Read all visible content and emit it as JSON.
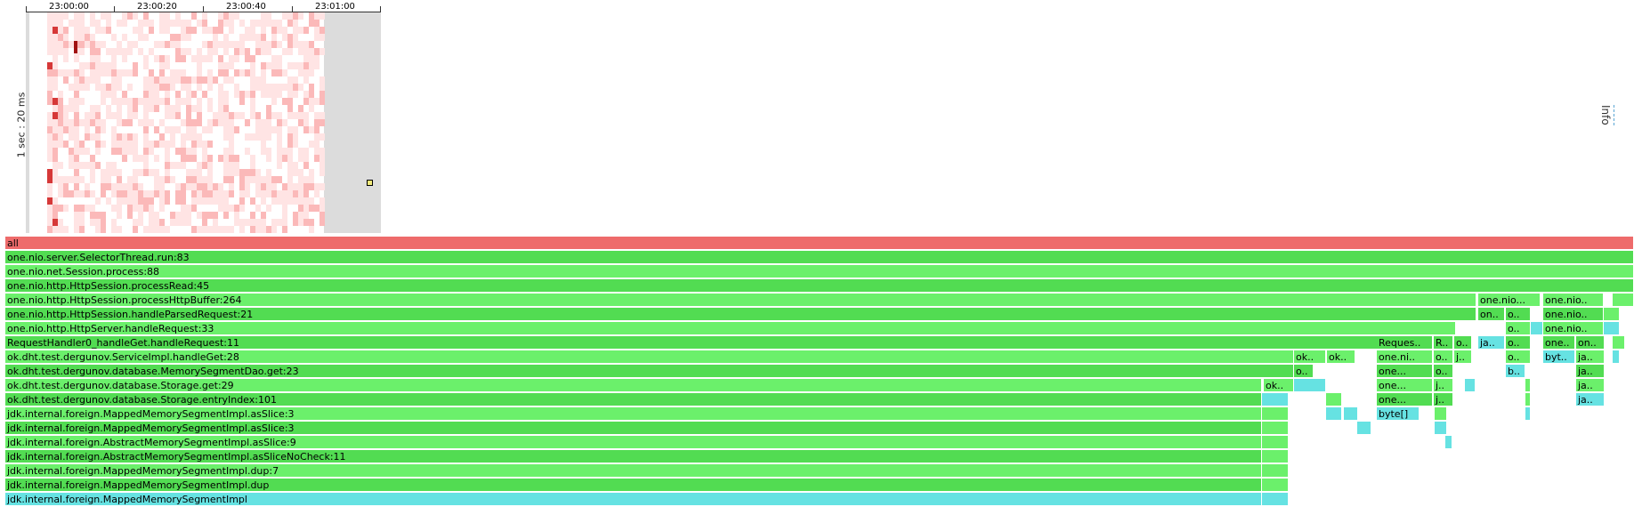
{
  "heatmap": {
    "time_axis_labels": [
      "23:00:00",
      "23:00:20",
      "23:00:40",
      "23:01:00"
    ],
    "y_axis_label": "1 sec : 20 ms",
    "colors": {
      "low": "#ffe4e4",
      "mid": "#fbb9b9",
      "high": "#d63838",
      "hot": "#a11212",
      "empty": "#dcdcdc"
    }
  },
  "info_tab": {
    "label": "Info"
  },
  "flame": {
    "colors": {
      "java": "#6bf06b",
      "java_dark": "#52dc52",
      "inlined": "#66e2e2",
      "root": "#ee6b6b"
    },
    "frames": [
      {
        "label": "all",
        "kind": "root"
      },
      {
        "label": "one.nio.server.SelectorThread.run:83",
        "kind": "java"
      },
      {
        "label": "one.nio.net.Session.process:88",
        "kind": "java"
      },
      {
        "label": "one.nio.http.HttpSession.processRead:45",
        "kind": "java"
      },
      {
        "label": "one.nio.http.HttpSession.processHttpBuffer:264",
        "kind": "java"
      },
      {
        "label": "one.nio.http.HttpSession.handleParsedRequest:21",
        "kind": "java"
      },
      {
        "label": "one.nio.http.HttpServer.handleRequest:33",
        "kind": "java"
      },
      {
        "label": "RequestHandler0_handleGet.handleRequest:11",
        "kind": "java"
      },
      {
        "label": "ok.dht.test.dergunov.ServiceImpl.handleGet:28",
        "kind": "java"
      },
      {
        "label": "ok.dht.test.dergunov.database.MemorySegmentDao.get:23",
        "kind": "java"
      },
      {
        "label": "ok.dht.test.dergunov.database.Storage.get:29",
        "kind": "java"
      },
      {
        "label": "ok.dht.test.dergunov.database.Storage.entryIndex:101",
        "kind": "java"
      },
      {
        "label": "jdk.internal.foreign.MappedMemorySegmentImpl.asSlice:3",
        "kind": "java"
      },
      {
        "label": "jdk.internal.foreign.MappedMemorySegmentImpl.asSlice:3",
        "kind": "java"
      },
      {
        "label": "jdk.internal.foreign.AbstractMemorySegmentImpl.asSlice:9",
        "kind": "java"
      },
      {
        "label": "jdk.internal.foreign.AbstractMemorySegmentImpl.asSliceNoCheck:11",
        "kind": "java"
      },
      {
        "label": "jdk.internal.foreign.MappedMemorySegmentImpl.dup:7",
        "kind": "java"
      },
      {
        "label": "jdk.internal.foreign.MappedMemorySegmentImpl.dup",
        "kind": "java"
      },
      {
        "label": "jdk.internal.foreign.MappedMemorySegmentImpl",
        "kind": "inlined"
      },
      {
        "label": "ok..",
        "kind": "java"
      },
      {
        "label": "o..",
        "kind": "java"
      },
      {
        "label": "ok..",
        "kind": "java"
      },
      {
        "label": "ok..",
        "kind": "java"
      },
      {
        "label": "Reques..",
        "kind": "java"
      },
      {
        "label": "one.ni..",
        "kind": "java"
      },
      {
        "label": "one...",
        "kind": "java"
      },
      {
        "label": "one...",
        "kind": "java"
      },
      {
        "label": "one...",
        "kind": "java"
      },
      {
        "label": "byte[]",
        "kind": "inlined"
      },
      {
        "label": "R..",
        "kind": "java"
      },
      {
        "label": "o..",
        "kind": "java"
      },
      {
        "label": "o..",
        "kind": "java"
      },
      {
        "label": "j..",
        "kind": "java"
      },
      {
        "label": "j..",
        "kind": "java"
      },
      {
        "label": "o..",
        "kind": "java"
      },
      {
        "label": "j..",
        "kind": "java"
      },
      {
        "label": "one.nio...",
        "kind": "java"
      },
      {
        "label": "on..",
        "kind": "java"
      },
      {
        "label": "ja..",
        "kind": "inlined"
      },
      {
        "label": "o..",
        "kind": "java"
      },
      {
        "label": "o..",
        "kind": "java"
      },
      {
        "label": "o..",
        "kind": "java"
      },
      {
        "label": "o..",
        "kind": "java"
      },
      {
        "label": "b..",
        "kind": "inlined"
      },
      {
        "label": "one.nio..",
        "kind": "java"
      },
      {
        "label": "one.nio..",
        "kind": "java"
      },
      {
        "label": "one.nio..",
        "kind": "java"
      },
      {
        "label": "one..",
        "kind": "java"
      },
      {
        "label": "byt..",
        "kind": "inlined"
      },
      {
        "label": "on..",
        "kind": "java"
      },
      {
        "label": "ja..",
        "kind": "java"
      },
      {
        "label": "ja..",
        "kind": "java"
      },
      {
        "label": "ja..",
        "kind": "java"
      },
      {
        "label": "ja..",
        "kind": "inlined"
      }
    ]
  }
}
